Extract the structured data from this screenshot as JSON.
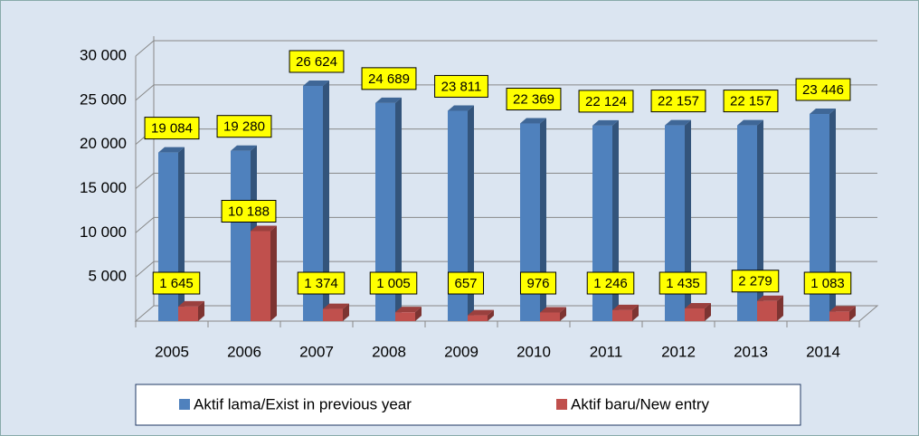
{
  "chart_data": {
    "type": "bar3d",
    "categories": [
      "2005",
      "2006",
      "2007",
      "2008",
      "2009",
      "2010",
      "2011",
      "2012",
      "2013",
      "2014"
    ],
    "series": [
      {
        "name": "Aktif lama/Exist in previous year",
        "color": "#4f81bd",
        "values": [
          19084,
          19280,
          26624,
          24689,
          23811,
          22369,
          22124,
          22157,
          22157,
          23446
        ],
        "value_labels": [
          "19 084",
          "19 280",
          "26 624",
          "24 689",
          "23 811",
          "22 369",
          "22 124",
          "22 157",
          "22 157",
          "23 446"
        ]
      },
      {
        "name": "Aktif baru/New entry",
        "color": "#c0504d",
        "values": [
          1645,
          10188,
          1374,
          1005,
          657,
          976,
          1246,
          1435,
          2279,
          1083
        ],
        "value_labels": [
          "1 645",
          "10 188",
          "1 374",
          "1 005",
          "657",
          "976",
          "1 246",
          "1 435",
          "2 279",
          "1 083"
        ]
      }
    ],
    "ylim": [
      0,
      30000
    ],
    "yticks": [
      {
        "value": 5000,
        "label": "5 000"
      },
      {
        "value": 10000,
        "label": "10 000"
      },
      {
        "value": 15000,
        "label": "15 000"
      },
      {
        "value": 20000,
        "label": "20 000"
      },
      {
        "value": 25000,
        "label": "25 000"
      },
      {
        "value": 30000,
        "label": "30 000"
      }
    ],
    "grid": true,
    "legend": "bottom"
  }
}
